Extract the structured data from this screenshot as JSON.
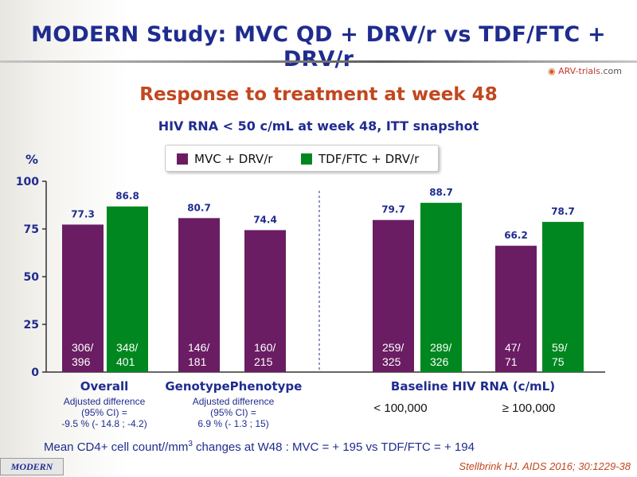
{
  "title": "MODERN Study: MVC QD + DRV/r vs TDF/FTC + DRV/r",
  "brand": {
    "name": "ARV-trials",
    "tld": ".com",
    "icon": "arv-logo-icon"
  },
  "subtitle": "Response to treatment at week 48",
  "subtitle2": "HIV RNA < 50 c/mL at week 48, ITT snapshot",
  "legend": [
    {
      "label": "MVC + DRV/r",
      "color": "#6a1d63"
    },
    {
      "label": "TDF/FTC + DRV/r",
      "color": "#00871f"
    }
  ],
  "chart_data": {
    "type": "bar",
    "ylabel": "%",
    "ylim": [
      0,
      100
    ],
    "yticks": [
      0,
      25,
      50,
      75,
      100
    ],
    "colors": {
      "mvc": "#6a1d63",
      "tdf": "#00871f"
    },
    "bars": [
      {
        "series": "MVC + DRV/r",
        "value": 77.3,
        "label": "77.3",
        "n": "306/\n396"
      },
      {
        "series": "TDF/FTC + DRV/r",
        "value": 86.8,
        "label": "86.8",
        "n": "348/\n401"
      },
      {
        "series": "MVC + DRV/r",
        "value": 80.7,
        "label": "80.7",
        "n": "146/\n181"
      },
      {
        "series": "MVC + DRV/r",
        "value": 74.4,
        "label": "74.4",
        "n": "160/\n215"
      },
      {
        "series": "MVC + DRV/r",
        "value": 79.7,
        "label": "79.7",
        "n": "259/\n325"
      },
      {
        "series": "TDF/FTC + DRV/r",
        "value": 88.7,
        "label": "88.7",
        "n": "289/\n326"
      },
      {
        "series": "MVC + DRV/r",
        "value": 66.2,
        "label": "66.2",
        "n": "47/\n71"
      },
      {
        "series": "TDF/FTC + DRV/r",
        "value": 78.7,
        "label": "78.7",
        "n": "59/\n75"
      }
    ],
    "groups": [
      {
        "label": "Overall",
        "note": "Adjusted difference\n(95% CI) =\n-9.5 % (- 14.8 ; -4.2)"
      },
      {
        "label": "Genotype",
        "note": "Adjusted difference\n(95% CI) =\n6.9 % (- 1.3 ; 15)"
      },
      {
        "label": "Phenotype",
        "note": ""
      },
      {
        "label": "Baseline  HIV  RNA  (c/mL)",
        "note": ""
      }
    ],
    "subgroups": [
      "< 100,000",
      "≥ 100,000"
    ]
  },
  "cd4_note": {
    "pre": "Mean CD4+ cell count//mm",
    "sup": "3",
    "post": "  changes at W48 : MVC = + 195 vs TDF/FTC = + 194"
  },
  "footer_tag": "MODERN",
  "citation": "Stellbrink HJ. AIDS 2016; 30:1229-38"
}
